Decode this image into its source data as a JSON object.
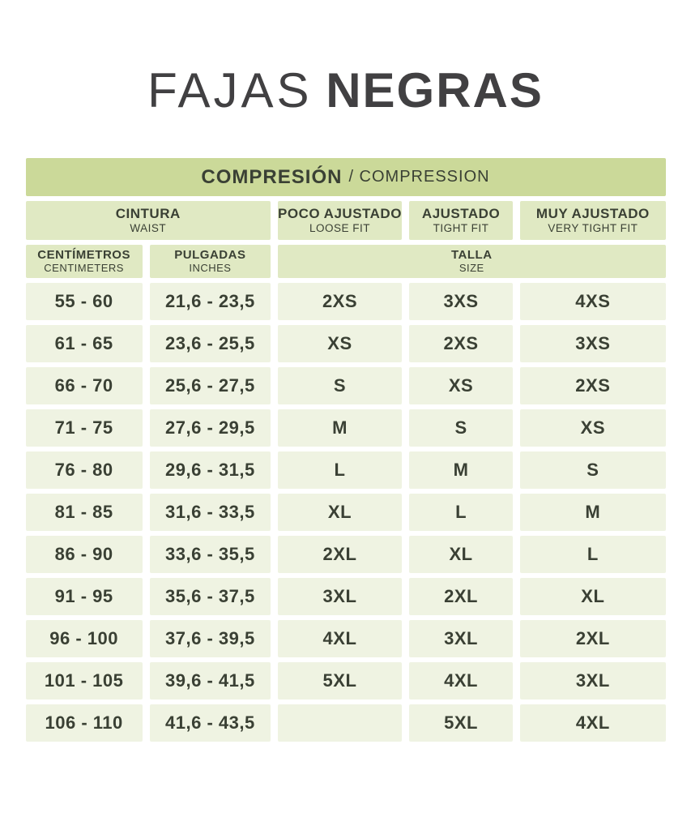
{
  "title": {
    "light": "FAJAS",
    "bold": "NEGRAS"
  },
  "banner": {
    "main": "COMPRESIÓN",
    "sub": "/ COMPRESSION"
  },
  "colors": {
    "title_color": "#414042",
    "text_dark": "#3a4034",
    "band_bg": "#cbd999",
    "header_bg": "#e0e9c3",
    "cell_bg": "#eff3e2",
    "page_bg": "#ffffff"
  },
  "chart_data": {
    "type": "table",
    "title": "FAJAS NEGRAS",
    "banner": "COMPRESIÓN / COMPRESSION",
    "header_groups": {
      "waist": {
        "es": "CINTURA",
        "en": "WAIST"
      },
      "loose_fit": {
        "es": "POCO AJUSTADO",
        "en": "LOOSE FIT"
      },
      "tight_fit": {
        "es": "AJUSTADO",
        "en": "TIGHT FIT"
      },
      "very_tight_fit": {
        "es": "MUY AJUSTADO",
        "en": "VERY TIGHT FIT"
      },
      "centimeters": {
        "es": "CENTÍMETROS",
        "en": "CENTIMETERS"
      },
      "inches": {
        "es": "PULGADAS",
        "en": "INCHES"
      },
      "size": {
        "es": "TALLA",
        "en": "SIZE"
      }
    },
    "rows": [
      {
        "cm": "55 - 60",
        "inches": "21,6 - 23,5",
        "loose": "2XS",
        "tight": "3XS",
        "very_tight": "4XS"
      },
      {
        "cm": "61 - 65",
        "inches": "23,6 - 25,5",
        "loose": "XS",
        "tight": "2XS",
        "very_tight": "3XS"
      },
      {
        "cm": "66 - 70",
        "inches": "25,6 - 27,5",
        "loose": "S",
        "tight": "XS",
        "very_tight": "2XS"
      },
      {
        "cm": "71 - 75",
        "inches": "27,6 - 29,5",
        "loose": "M",
        "tight": "S",
        "very_tight": "XS"
      },
      {
        "cm": "76 - 80",
        "inches": "29,6 - 31,5",
        "loose": "L",
        "tight": "M",
        "very_tight": "S"
      },
      {
        "cm": "81 - 85",
        "inches": "31,6 - 33,5",
        "loose": "XL",
        "tight": "L",
        "very_tight": "M"
      },
      {
        "cm": "86 - 90",
        "inches": "33,6 - 35,5",
        "loose": "2XL",
        "tight": "XL",
        "very_tight": "L"
      },
      {
        "cm": "91 - 95",
        "inches": "35,6 - 37,5",
        "loose": "3XL",
        "tight": "2XL",
        "very_tight": "XL"
      },
      {
        "cm": "96 - 100",
        "inches": "37,6 - 39,5",
        "loose": "4XL",
        "tight": "3XL",
        "very_tight": "2XL"
      },
      {
        "cm": "101 - 105",
        "inches": "39,6 - 41,5",
        "loose": "5XL",
        "tight": "4XL",
        "very_tight": "3XL"
      },
      {
        "cm": "106 - 110",
        "inches": "41,6 - 43,5",
        "loose": "",
        "tight": "5XL",
        "very_tight": "4XL"
      }
    ]
  }
}
